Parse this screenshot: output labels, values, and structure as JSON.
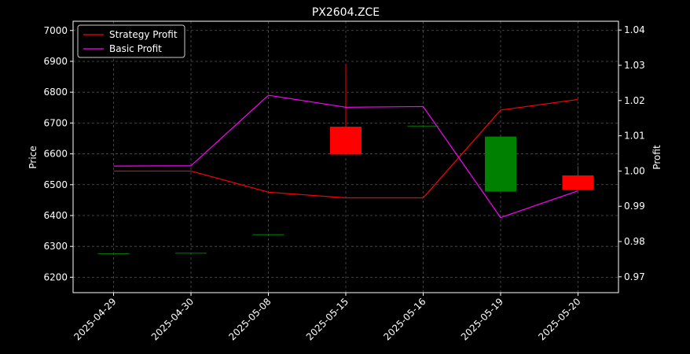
{
  "chart_data": {
    "type": "candlestick-line-combo",
    "title": "PX2604.ZCE",
    "background": "#000000",
    "categories": [
      "2025-04-29",
      "2025-04-30",
      "2025-05-08",
      "2025-05-15",
      "2025-05-16",
      "2025-05-19",
      "2025-05-20"
    ],
    "candles": [
      {
        "date": "2025-04-29",
        "open": 6276,
        "close": 6276,
        "high": 6276,
        "low": 6276
      },
      {
        "date": "2025-04-30",
        "open": 6278,
        "close": 6278,
        "high": 6278,
        "low": 6278
      },
      {
        "date": "2025-05-08",
        "open": 6338,
        "close": 6338,
        "high": 6338,
        "low": 6338
      },
      {
        "date": "2025-05-15",
        "open": 6688,
        "close": 6598,
        "high": 6890,
        "low": 6598
      },
      {
        "date": "2025-05-16",
        "open": 6690,
        "close": 6690,
        "high": 6690,
        "low": 6690
      },
      {
        "date": "2025-05-19",
        "open": 6478,
        "close": 6656,
        "high": 6656,
        "low": 6478
      },
      {
        "date": "2025-05-20",
        "open": 6530,
        "close": 6484,
        "high": 6560,
        "low": 6484
      }
    ],
    "up_color": "#008000",
    "down_color": "#ff0000",
    "left_axis": {
      "label": "Price",
      "ylim": [
        6150,
        7030
      ],
      "ticks": [
        6200,
        6300,
        6400,
        6500,
        6600,
        6700,
        6800,
        6900,
        7000
      ]
    },
    "right_axis": {
      "label": "Profit",
      "ylim": [
        0.9655,
        1.0425
      ],
      "ticks": [
        "0.97",
        "0.98",
        "0.99",
        "1.00",
        "1.01",
        "1.02",
        "1.03",
        "1.04"
      ]
    },
    "series": [
      {
        "name": "Strategy Profit",
        "color": "#ff0000",
        "axis": "right",
        "values": [
          1.0,
          1.0,
          0.994,
          0.9924,
          0.9924,
          1.0173,
          1.0203
        ]
      },
      {
        "name": "Basic Profit",
        "color": "#ff00ff",
        "axis": "right",
        "values": [
          1.0014,
          1.0015,
          1.0215,
          1.0181,
          1.0183,
          0.9868,
          0.9944
        ]
      }
    ],
    "grid": true,
    "legend_position": "top-left"
  }
}
